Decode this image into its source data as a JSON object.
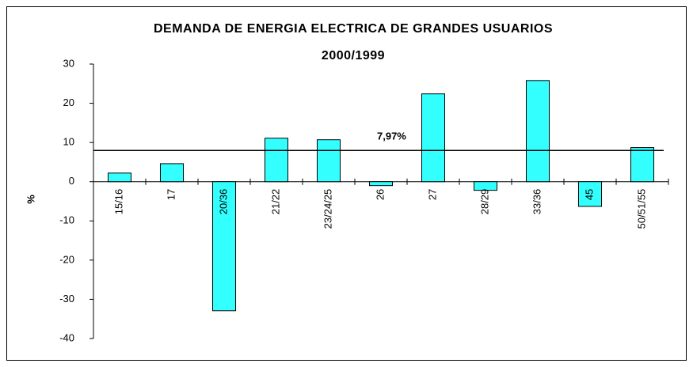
{
  "chart_data": {
    "type": "bar",
    "title": "DEMANDA DE ENERGIA ELECTRICA DE GRANDES USUARIOS",
    "subtitle": "2000/1999",
    "y_label": "%",
    "categories": [
      "15/16",
      "17",
      "20/36",
      "21/22",
      "23/24/25",
      "26",
      "27",
      "28/29",
      "33/36",
      "45",
      "50/51/55"
    ],
    "values": [
      2.2,
      4.6,
      -32.9,
      11.1,
      10.7,
      -1.0,
      22.4,
      -2.2,
      25.8,
      -6.3,
      8.7
    ],
    "color": "#33ffff",
    "ylim": [
      -40,
      30
    ],
    "yticks": [
      -40,
      -30,
      -20,
      -10,
      0,
      10,
      20,
      30
    ],
    "reference": {
      "value": 7.97,
      "label": "7,97%"
    },
    "grid": false
  }
}
